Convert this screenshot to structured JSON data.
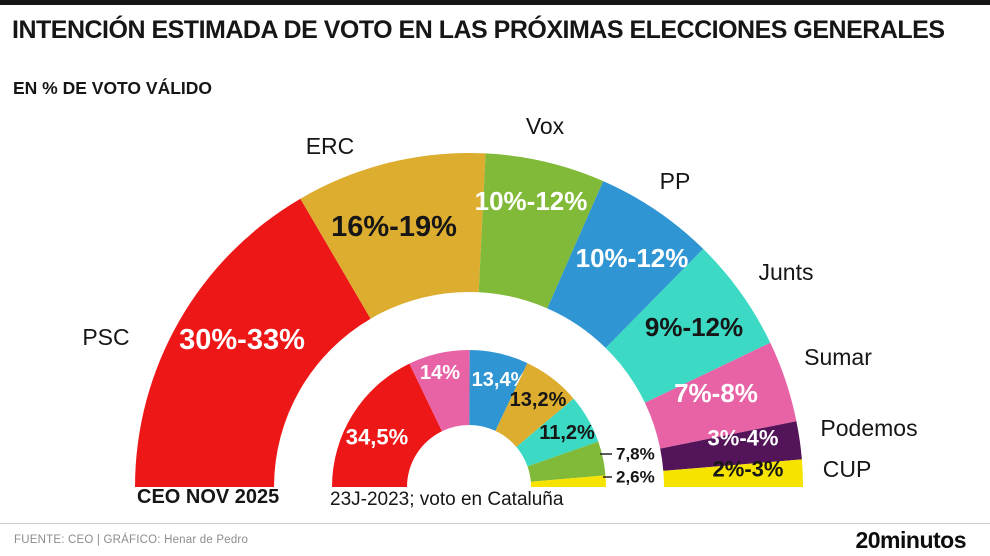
{
  "page": {
    "title": "INTENCIÓN ESTIMADA DE VOTO EN LAS PRÓXIMAS ELECCIONES GENERALES",
    "subtitle": "EN % DE VOTO VÁLIDO"
  },
  "chart_data": {
    "type": "hemicycle-donut",
    "unit": "% de voto válido",
    "rings": [
      {
        "id": "outer",
        "caption": "CEO NOV 2025",
        "segments": [
          {
            "party": "PSC",
            "label": "30%-33%",
            "low": 30,
            "high": 33,
            "value": 31.5,
            "color": "#ee1717",
            "label_color": "#ffffff"
          },
          {
            "party": "ERC",
            "label": "16%-19%",
            "low": 16,
            "high": 19,
            "value": 17.5,
            "color": "#ddad2f",
            "label_color": "#161616"
          },
          {
            "party": "Vox",
            "label": "10%-12%",
            "low": 10,
            "high": 12,
            "value": 11,
            "color": "#80ba38",
            "label_color": "#ffffff"
          },
          {
            "party": "PP",
            "label": "10%-12%",
            "low": 10,
            "high": 12,
            "value": 11,
            "color": "#2f95d3",
            "label_color": "#ffffff"
          },
          {
            "party": "Junts",
            "label": "9%-12%",
            "low": 9,
            "high": 12,
            "value": 10.5,
            "color": "#3cd9c4",
            "label_color": "#161616"
          },
          {
            "party": "Sumar",
            "label": "7%-8%",
            "low": 7,
            "high": 8,
            "value": 7.5,
            "color": "#e763a5",
            "label_color": "#ffffff"
          },
          {
            "party": "Podemos",
            "label": "3%-4%",
            "low": 3,
            "high": 4,
            "value": 3.5,
            "color": "#531459",
            "label_color": "#ffffff"
          },
          {
            "party": "CUP",
            "label": "2%-3%",
            "low": 2,
            "high": 3,
            "value": 2.5,
            "color": "#f7e300",
            "label_color": "#161616"
          }
        ]
      },
      {
        "id": "inner",
        "caption": "23J-2023; voto en Cataluña",
        "segments": [
          {
            "party": "PSC",
            "label": "34,5%",
            "value": 34.5,
            "color": "#ee1717",
            "label_color": "#ffffff",
            "outside": false
          },
          {
            "party": "Sumar",
            "label": "14%",
            "value": 14,
            "color": "#e763a5",
            "label_color": "#ffffff",
            "outside": false
          },
          {
            "party": "PP",
            "label": "13,4%",
            "value": 13.4,
            "color": "#2f95d3",
            "label_color": "#ffffff",
            "outside": false
          },
          {
            "party": "ERC",
            "label": "13,2%",
            "value": 13.2,
            "color": "#ddad2f",
            "label_color": "#161616",
            "outside": false
          },
          {
            "party": "Junts",
            "label": "11,2%",
            "value": 11.2,
            "color": "#3cd9c4",
            "label_color": "#161616",
            "outside": false
          },
          {
            "party": "Vox",
            "label": "7,8%",
            "value": 7.8,
            "color": "#80ba38",
            "label_color": "#161616",
            "outside": true
          },
          {
            "party": "CUP",
            "label": "2,6%",
            "value": 2.6,
            "color": "#f7e300",
            "label_color": "#161616",
            "outside": true
          }
        ]
      }
    ]
  },
  "footer": {
    "source": "FUENTE: CEO  |  GRÁFICO: Henar de Pedro",
    "logo": "20minutos"
  }
}
